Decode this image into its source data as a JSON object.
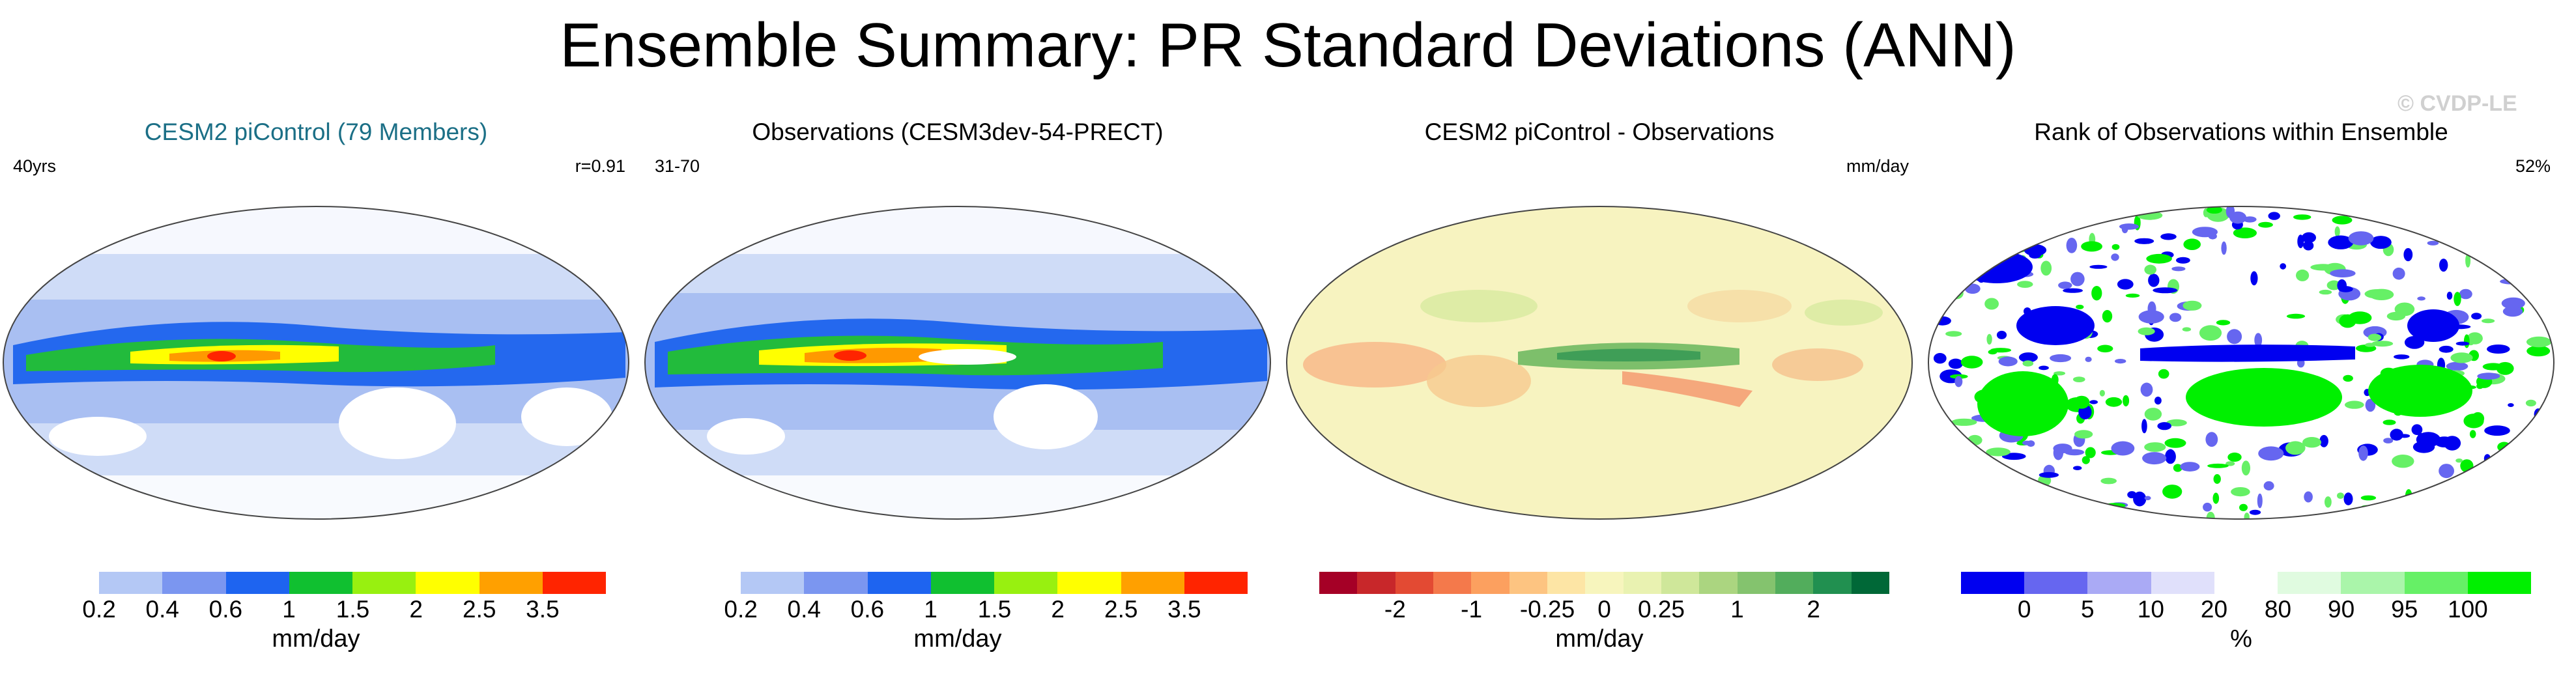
{
  "title": "Ensemble Summary: PR Standard Deviations (ANN)",
  "watermark": "© CVDP-LE",
  "panels": [
    {
      "title": "CESM2 piControl (79 Members)",
      "left_label": "40yrs",
      "right_label": "r=0.91",
      "colorbar": {
        "colors": [
          "#ffffff",
          "#b4c8f5",
          "#7b96f0",
          "#1e64f0",
          "#10c030",
          "#98f010",
          "#ffff00",
          "#ffa000",
          "#ff2400"
        ],
        "ticks": [
          "0.2",
          "0.4",
          "0.6",
          "1",
          "1.5",
          "2",
          "2.5",
          "3.5"
        ],
        "units": "mm/day"
      }
    },
    {
      "title": "Observations (CESM3dev-54-PRECT)",
      "left_label": "31-70",
      "right_label": "",
      "colorbar": {
        "colors": [
          "#ffffff",
          "#b4c8f5",
          "#7b96f0",
          "#1e64f0",
          "#10c030",
          "#98f010",
          "#ffff00",
          "#ffa000",
          "#ff2400"
        ],
        "ticks": [
          "0.2",
          "0.4",
          "0.6",
          "1",
          "1.5",
          "2",
          "2.5",
          "3.5"
        ],
        "units": "mm/day"
      }
    },
    {
      "title": "CESM2 piControl - Observations",
      "left_label": "",
      "right_label": "mm/day",
      "colorbar": {
        "colors": [
          "#a50026",
          "#c8272a",
          "#e34a33",
          "#f4794b",
          "#fca05f",
          "#fdc481",
          "#fde5a5",
          "#f7f5bd",
          "#e9f2b1",
          "#cfe79a",
          "#abd580",
          "#84c36e",
          "#52ad5c",
          "#219050",
          "#006837"
        ],
        "ticks": [
          "-2",
          "-1",
          "-0.25",
          "0",
          "0.25",
          "1",
          "2"
        ],
        "units": "mm/day"
      }
    },
    {
      "title": "Rank of Observations within Ensemble",
      "left_label": "",
      "right_label": "52%",
      "colorbar": {
        "colors": [
          "#0000f0",
          "#6666f0",
          "#aaaaf5",
          "#e0e0fb",
          "#ffffff",
          "#e0fbe0",
          "#aaf5aa",
          "#66f066",
          "#00f000"
        ],
        "ticks": [
          "0",
          "5",
          "10",
          "20",
          "80",
          "90",
          "95",
          "100"
        ],
        "units": "%"
      }
    }
  ]
}
